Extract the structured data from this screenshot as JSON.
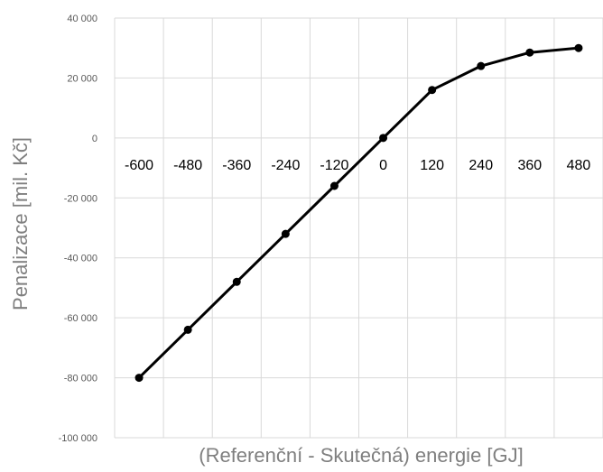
{
  "chart_data": {
    "type": "line",
    "xlabel": "(Referenční - Skutečná) energie [GJ]",
    "ylabel": "Penalizace [mil. Kč]",
    "categories": [
      "-600",
      "-480",
      "-360",
      "-240",
      "-120",
      "0",
      "120",
      "240",
      "360",
      "480"
    ],
    "y_tick_labels": [
      "40 000",
      "20 000",
      "0",
      "-20 000",
      "-40 000",
      "-60 000",
      "-80 000",
      "-100 000"
    ],
    "y_ticks": [
      40000,
      20000,
      0,
      -20000,
      -40000,
      -60000,
      -80000,
      -100000
    ],
    "ylim": [
      -100000,
      40000
    ],
    "series": [
      {
        "values": [
          -80000,
          -64000,
          -48000,
          -32000,
          -16000,
          0,
          16000,
          24000,
          28500,
          30000
        ]
      }
    ],
    "grid": true,
    "colors": {
      "line": "#000000",
      "marker": "#000000",
      "grid": "#d9d9d9",
      "tick_text": "#595959",
      "axis_title": "#7f7f7f"
    }
  }
}
